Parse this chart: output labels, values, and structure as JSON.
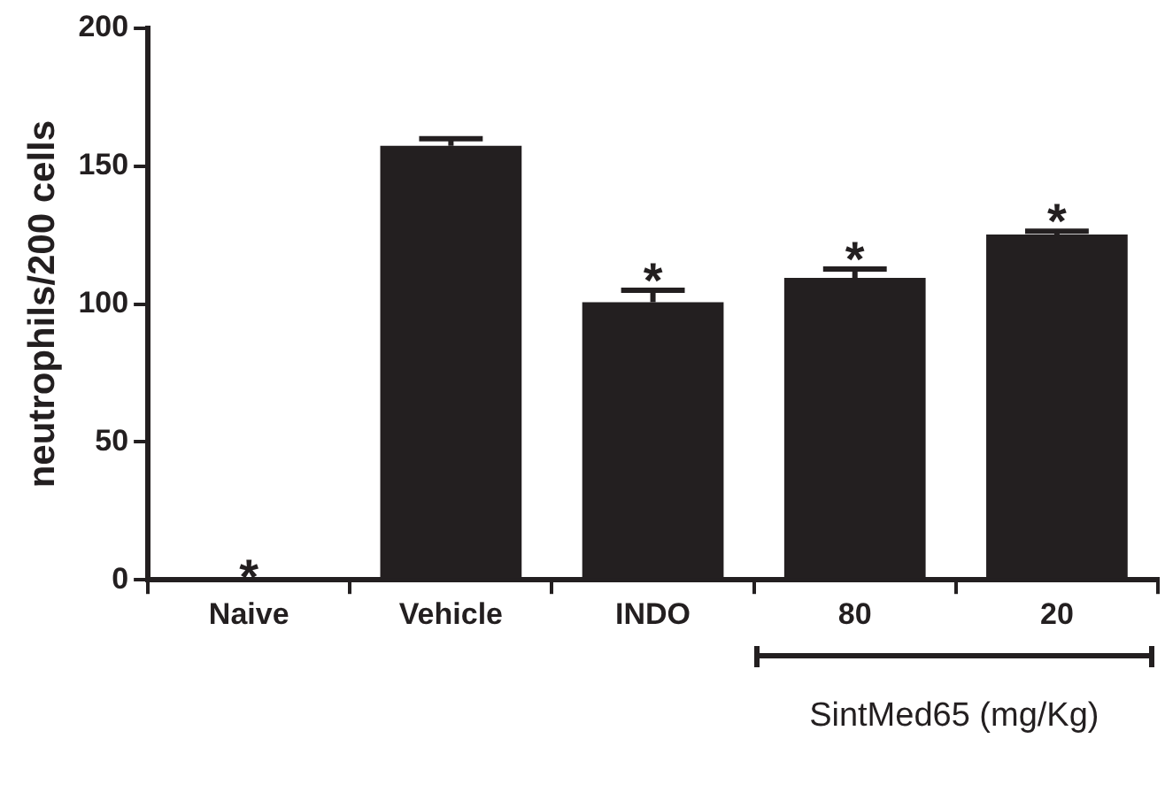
{
  "chart_data": {
    "type": "bar",
    "ylabel": "neutrophils/200 cells",
    "categories": [
      "Naive",
      "Vehicle",
      "INDO",
      "80",
      "20"
    ],
    "values": [
      0,
      157.4,
      100.7,
      109.5,
      125.2
    ],
    "errors": [
      null,
      2.6,
      4.3,
      3.2,
      1.2
    ],
    "color": "#231f20",
    "ylim": [
      0,
      200
    ],
    "yticks": [
      0,
      50,
      100,
      150,
      200
    ],
    "grid": false,
    "legend": false,
    "annotations": [
      {
        "text": "*",
        "x": "Naive",
        "y": 0
      },
      {
        "text": "*",
        "x": "INDO",
        "y": 100.7
      },
      {
        "text": "*",
        "x": "80",
        "y": 109.5
      },
      {
        "text": "*",
        "x": "20",
        "y": 125.2
      },
      "SintMed65 (mg/Kg)"
    ]
  }
}
